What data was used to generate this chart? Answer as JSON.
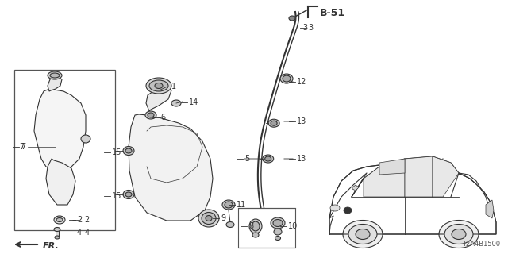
{
  "bg_color": "#ffffff",
  "diagram_code": "T2A4B1500",
  "ref_label": "B-51",
  "fr_label": "FR.",
  "line_color": "#333333",
  "lw": 0.8
}
